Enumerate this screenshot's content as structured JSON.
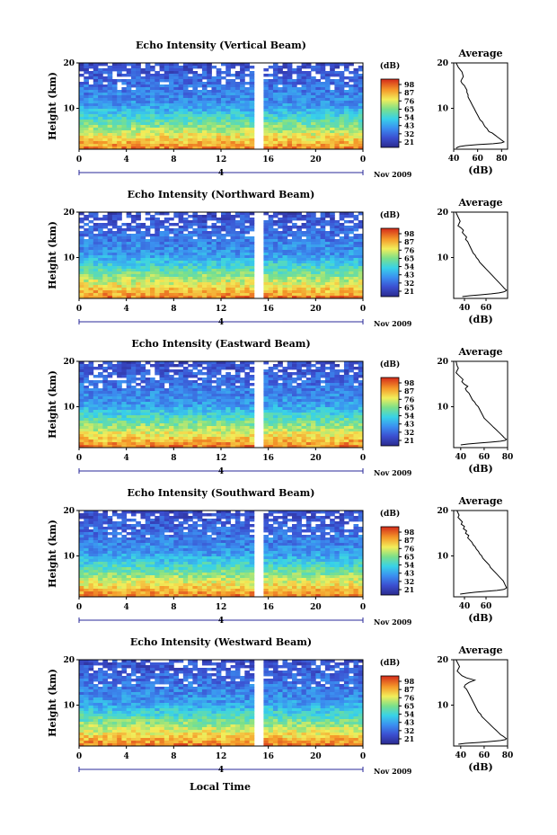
{
  "footer": {
    "xlabel": "Local Time"
  },
  "chart_data": [
    {
      "type": "heatmap",
      "title": "Echo Intensity (Vertical Beam)",
      "ylabel": "Height (km)",
      "xticks": [
        "0",
        "4",
        "8",
        "12",
        "16",
        "20",
        "0"
      ],
      "yticks": [
        "20",
        "10"
      ],
      "xlim": [
        0,
        24
      ],
      "ylim": [
        1,
        20
      ],
      "gap_hours": [
        14.9,
        15.4
      ],
      "date_label": "4",
      "month_label": "Nov 2009",
      "colorbar": {
        "label": "(dB)",
        "ticks": [
          "98",
          "87",
          "76",
          "65",
          "54",
          "43",
          "32",
          "21"
        ],
        "range": [
          21,
          98
        ]
      }
    },
    {
      "type": "line",
      "title": "Average",
      "xlabel": "(dB)",
      "xticks": [
        "40",
        "60",
        "80"
      ],
      "yticks": [
        "20",
        "10"
      ],
      "xlim": [
        40,
        85
      ],
      "ylim": [
        1,
        20
      ],
      "x": [
        42,
        44,
        47,
        48,
        47,
        46,
        47,
        49,
        50,
        51,
        51,
        52,
        52,
        53,
        54,
        55,
        56,
        57,
        58,
        59,
        60,
        61,
        62,
        64,
        65,
        66,
        68,
        69,
        70,
        72,
        73,
        74,
        75,
        76,
        77,
        78,
        79,
        80,
        81,
        82,
        80,
        73,
        60,
        50,
        45,
        43,
        42
      ],
      "y": [
        20,
        19,
        18,
        17,
        16.5,
        16,
        15.5,
        15,
        14.5,
        14,
        13.5,
        13,
        12.5,
        12,
        11.5,
        11,
        10.5,
        10,
        9.5,
        9,
        8.5,
        8,
        7.5,
        7,
        6.5,
        6,
        5.5,
        5,
        4.8,
        4.6,
        4.4,
        4.2,
        4,
        3.8,
        3.6,
        3.4,
        3.2,
        3,
        2.8,
        2.6,
        2.4,
        2.2,
        2,
        1.8,
        1.6,
        1.4,
        1.2
      ]
    },
    {
      "type": "heatmap",
      "title": "Echo Intensity (Northward Beam)",
      "ylabel": "Height (km)",
      "xticks": [
        "0",
        "4",
        "8",
        "12",
        "16",
        "20",
        "0"
      ],
      "yticks": [
        "20",
        "10"
      ],
      "xlim": [
        0,
        24
      ],
      "ylim": [
        1,
        20
      ],
      "gap_hours": [
        14.9,
        15.4
      ],
      "date_label": "4",
      "month_label": "Nov 2009",
      "colorbar": {
        "label": "(dB)",
        "ticks": [
          "98",
          "87",
          "76",
          "65",
          "54",
          "43",
          "32",
          "21"
        ],
        "range": [
          21,
          98
        ]
      }
    },
    {
      "type": "line",
      "title": "Average",
      "xlabel": "(dB)",
      "xticks": [
        "40",
        "60"
      ],
      "yticks": [
        "20",
        "10"
      ],
      "xlim": [
        30,
        80
      ],
      "ylim": [
        1,
        20
      ],
      "x": [
        32,
        34,
        36,
        35,
        34,
        37,
        39,
        38,
        40,
        42,
        41,
        43,
        44,
        45,
        46,
        47,
        48,
        50,
        51,
        53,
        54,
        56,
        58,
        60,
        62,
        64,
        66,
        68,
        70,
        72,
        74,
        76,
        77,
        78,
        79,
        78,
        76,
        72,
        65,
        55,
        45,
        38
      ],
      "y": [
        20,
        19,
        18,
        17.5,
        17,
        16.5,
        16,
        15.5,
        15,
        14.5,
        14,
        13.5,
        13,
        12.5,
        12,
        11.5,
        11,
        10.5,
        10,
        9.5,
        9,
        8.5,
        8,
        7.5,
        7,
        6.5,
        6,
        5.5,
        5,
        4.5,
        4,
        3.5,
        3.2,
        3,
        2.8,
        2.6,
        2.4,
        2.2,
        2,
        1.8,
        1.6,
        1.4
      ]
    },
    {
      "type": "heatmap",
      "title": "Echo Intensity (Eastward Beam)",
      "ylabel": "Height (km)",
      "xticks": [
        "0",
        "4",
        "8",
        "12",
        "16",
        "20",
        "0"
      ],
      "yticks": [
        "20",
        "10"
      ],
      "xlim": [
        0,
        24
      ],
      "ylim": [
        1,
        20
      ],
      "gap_hours": [
        14.9,
        15.4
      ],
      "date_label": "4",
      "month_label": "Nov 2009",
      "colorbar": {
        "label": "(dB)",
        "ticks": [
          "98",
          "87",
          "76",
          "65",
          "54",
          "43",
          "32",
          "21"
        ],
        "range": [
          21,
          98
        ]
      }
    },
    {
      "type": "line",
      "title": "Average",
      "xlabel": "(dB)",
      "xticks": [
        "40",
        "60",
        "80"
      ],
      "yticks": [
        "20",
        "10"
      ],
      "xlim": [
        34,
        80
      ],
      "ylim": [
        1,
        20
      ],
      "x": [
        36,
        37,
        38,
        37,
        36,
        38,
        40,
        42,
        41,
        43,
        46,
        44,
        45,
        47,
        48,
        49,
        50,
        52,
        53,
        55,
        56,
        57,
        58,
        59,
        60,
        62,
        64,
        66,
        68,
        70,
        72,
        74,
        76,
        77,
        78,
        79,
        78,
        74,
        66,
        56,
        46,
        40
      ],
      "y": [
        20,
        19,
        18.5,
        18,
        17.5,
        17,
        16.5,
        16,
        15.5,
        15,
        14.5,
        14,
        13.5,
        13,
        12.5,
        12,
        11.5,
        11,
        10.5,
        10,
        9.5,
        9,
        8.5,
        8,
        7.5,
        7,
        6.5,
        6,
        5.5,
        5,
        4.5,
        4,
        3.5,
        3.2,
        3,
        2.8,
        2.6,
        2.4,
        2.2,
        2,
        1.8,
        1.6
      ]
    },
    {
      "type": "heatmap",
      "title": "Echo Intensity (Southward Beam)",
      "ylabel": "Height (km)",
      "xticks": [
        "0",
        "4",
        "8",
        "12",
        "16",
        "20",
        "0"
      ],
      "yticks": [
        "20",
        "10"
      ],
      "xlim": [
        0,
        24
      ],
      "ylim": [
        1,
        20
      ],
      "gap_hours": [
        14.9,
        15.4
      ],
      "date_label": "4",
      "month_label": "Nov 2009",
      "colorbar": {
        "label": "(dB)",
        "ticks": [
          "98",
          "87",
          "76",
          "65",
          "54",
          "43",
          "32",
          "21"
        ],
        "range": [
          21,
          98
        ]
      }
    },
    {
      "type": "line",
      "title": "Average",
      "xlabel": "(dB)",
      "xticks": [
        "40",
        "60"
      ],
      "yticks": [
        "20",
        "10"
      ],
      "xlim": [
        30,
        80
      ],
      "ylim": [
        1,
        20
      ],
      "x": [
        33,
        35,
        34,
        36,
        38,
        37,
        40,
        39,
        42,
        41,
        44,
        43,
        45,
        47,
        48,
        50,
        51,
        53,
        54,
        56,
        57,
        59,
        61,
        63,
        64,
        66,
        68,
        70,
        72,
        74,
        76,
        77,
        78,
        79,
        78,
        76,
        70,
        60,
        50,
        42,
        36
      ],
      "y": [
        20,
        19,
        18.5,
        18,
        17.5,
        17,
        16.5,
        16,
        15.5,
        15,
        14.5,
        14,
        13.5,
        13,
        12.5,
        12,
        11.5,
        11,
        10.5,
        10,
        9.5,
        9,
        8.5,
        8,
        7.5,
        7,
        6.5,
        6,
        5.5,
        5,
        4.5,
        4,
        3.5,
        3,
        2.8,
        2.6,
        2.4,
        2.2,
        2,
        1.8,
        1.6
      ]
    },
    {
      "type": "heatmap",
      "title": "Echo Intensity (Westward Beam)",
      "ylabel": "Height (km)",
      "xticks": [
        "0",
        "4",
        "8",
        "12",
        "16",
        "20",
        "0"
      ],
      "yticks": [
        "20",
        "10"
      ],
      "xlim": [
        0,
        24
      ],
      "ylim": [
        1,
        20
      ],
      "gap_hours": [
        14.9,
        15.4
      ],
      "date_label": "4",
      "month_label": "Nov 2009",
      "colorbar": {
        "label": "(dB)",
        "ticks": [
          "98",
          "87",
          "76",
          "65",
          "54",
          "43",
          "32",
          "21"
        ],
        "range": [
          21,
          98
        ]
      }
    },
    {
      "type": "line",
      "title": "Average",
      "xlabel": "(dB)",
      "xticks": [
        "40",
        "60",
        "80"
      ],
      "yticks": [
        "20",
        "10"
      ],
      "xlim": [
        34,
        80
      ],
      "ylim": [
        1,
        20
      ],
      "x": [
        36,
        38,
        39,
        38,
        37,
        39,
        41,
        45,
        52,
        47,
        44,
        43,
        45,
        46,
        47,
        48,
        49,
        50,
        51,
        52,
        53,
        54,
        55,
        57,
        58,
        60,
        62,
        64,
        66,
        68,
        70,
        72,
        74,
        76,
        77,
        78,
        79,
        78,
        74,
        66,
        56,
        44,
        38
      ],
      "y": [
        20,
        19,
        18.5,
        18,
        17.5,
        17,
        16.5,
        16,
        15.5,
        15,
        14.5,
        14,
        13.5,
        13,
        12.5,
        12,
        11.5,
        11,
        10.5,
        10,
        9.5,
        9,
        8.5,
        8,
        7.5,
        7,
        6.5,
        6,
        5.5,
        5,
        4.5,
        4,
        3.5,
        3.2,
        3,
        2.8,
        2.6,
        2.4,
        2.2,
        2,
        1.8,
        1.6,
        1.4
      ]
    }
  ]
}
